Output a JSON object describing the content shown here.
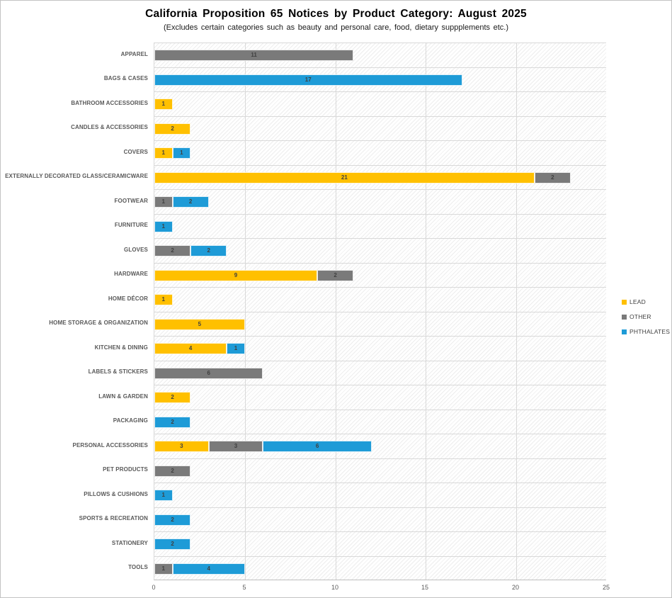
{
  "window": {
    "background": "#ffffff",
    "border_color": "#c3c3c3"
  },
  "colors": {
    "grid": "#d9d9d9",
    "axis_line": "#bfbfbf",
    "hatch_line": "#e0e0e0",
    "category_label": "#595959",
    "tick_label": "#595959",
    "data_label": "#3f3f3f",
    "legend_label": "#404040"
  },
  "chart_data": {
    "type": "bar",
    "orientation": "horizontal",
    "stacked": true,
    "title": "California Proposition 65 Notices by Product Category: August 2025",
    "subtitle": "(Excludes certain categories such as beauty and personal care, food, dietary suppplements etc.)",
    "categories": [
      "APPAREL",
      "BAGS & CASES",
      "BATHROOM ACCESSORIES",
      "CANDLES & ACCESSORIES",
      "COVERS",
      "EXTERNALLY DECORATED GLASS/CERAMICWARE",
      "FOOTWEAR",
      "FURNITURE",
      "GLOVES",
      "HARDWARE",
      "HOME DÉCOR",
      "HOME STORAGE & ORGANIZATION",
      "KITCHEN & DINING",
      "LABELS & STICKERS",
      "LAWN & GARDEN",
      "PACKAGING",
      "PERSONAL ACCESSORIES",
      "PET PRODUCTS",
      "PILLOWS & CUSHIONS",
      "SPORTS & RECREATION",
      "STATIONERY",
      "TOOLS"
    ],
    "series": [
      {
        "name": "LEAD",
        "color": "#FFC000",
        "values": [
          0,
          0,
          1,
          2,
          1,
          21,
          0,
          0,
          0,
          9,
          1,
          5,
          4,
          0,
          2,
          0,
          3,
          0,
          0,
          0,
          0,
          0
        ]
      },
      {
        "name": "OTHER",
        "color": "#7A7A7A",
        "values": [
          11,
          0,
          0,
          0,
          0,
          2,
          1,
          0,
          2,
          2,
          0,
          0,
          0,
          6,
          0,
          0,
          3,
          2,
          0,
          0,
          0,
          1
        ]
      },
      {
        "name": "PHTHALATES",
        "color": "#1E9BD7",
        "values": [
          0,
          17,
          0,
          0,
          1,
          0,
          2,
          1,
          2,
          0,
          0,
          0,
          1,
          0,
          0,
          2,
          6,
          0,
          1,
          2,
          2,
          4
        ]
      }
    ],
    "xlim": [
      0,
      25
    ],
    "xticks": [
      0,
      5,
      10,
      15,
      20,
      25
    ],
    "grid": true,
    "legend_position": "right",
    "show_data_labels": true
  }
}
